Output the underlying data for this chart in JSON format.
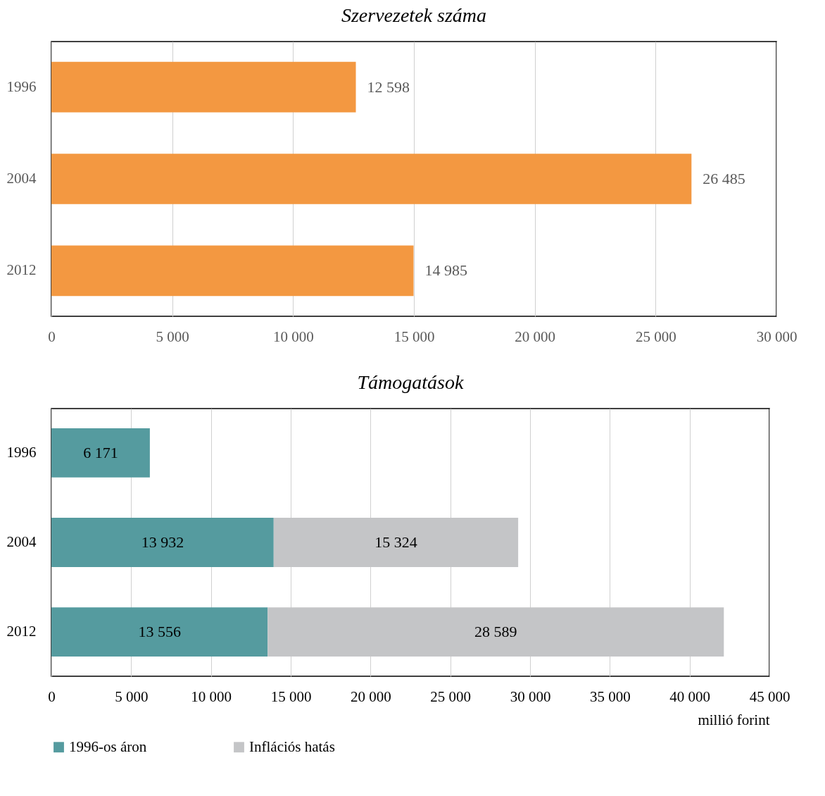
{
  "chart_data": [
    {
      "type": "bar",
      "title": "Szervezetek száma",
      "orientation": "horizontal",
      "categories": [
        "1996",
        "2004",
        "2012"
      ],
      "values": [
        12598,
        26485,
        14985
      ],
      "value_labels": [
        "12 598",
        "26 485",
        "14 985"
      ],
      "color": "#f39841",
      "xlim": [
        0,
        30000
      ],
      "xticks": [
        0,
        {
          "value": 5000,
          "label": "5 000"
        },
        {
          "value": 10000,
          "label": "10 000"
        },
        {
          "value": 15000,
          "label": "15 000"
        },
        {
          "value": 20000,
          "label": "20 000"
        },
        {
          "value": 25000,
          "label": "25 000"
        },
        {
          "value": 30000,
          "label": "30 000"
        }
      ],
      "grid": "x",
      "legend": false
    },
    {
      "type": "bar",
      "title": "Támogatások",
      "orientation": "horizontal",
      "stacked": true,
      "categories": [
        "1996",
        "2004",
        "2012"
      ],
      "xlabel": "millió forint",
      "series": [
        {
          "name": "1996-os áron",
          "color": "#559b9f",
          "values": [
            6171,
            13932,
            13556
          ],
          "value_labels": [
            "6 171",
            "13 932",
            "13 556"
          ]
        },
        {
          "name": "Inflációs hatás",
          "color": "#c4c5c7",
          "values": [
            null,
            15324,
            28589
          ],
          "value_labels": [
            null,
            "15 324",
            "28 589"
          ]
        }
      ],
      "xlim": [
        0,
        45000
      ],
      "xticks": [
        0,
        {
          "value": 5000,
          "label": "5 000"
        },
        {
          "value": 10000,
          "label": "10 000"
        },
        {
          "value": 15000,
          "label": "15 000"
        },
        {
          "value": 20000,
          "label": "20 000"
        },
        {
          "value": 25000,
          "label": "25 000"
        },
        {
          "value": 30000,
          "label": "30 000"
        },
        {
          "value": 35000,
          "label": "35 000"
        },
        {
          "value": 40000,
          "label": "40 000"
        },
        {
          "value": 45000,
          "label": "45 000"
        }
      ],
      "grid": "x",
      "legend": "bottom"
    }
  ]
}
